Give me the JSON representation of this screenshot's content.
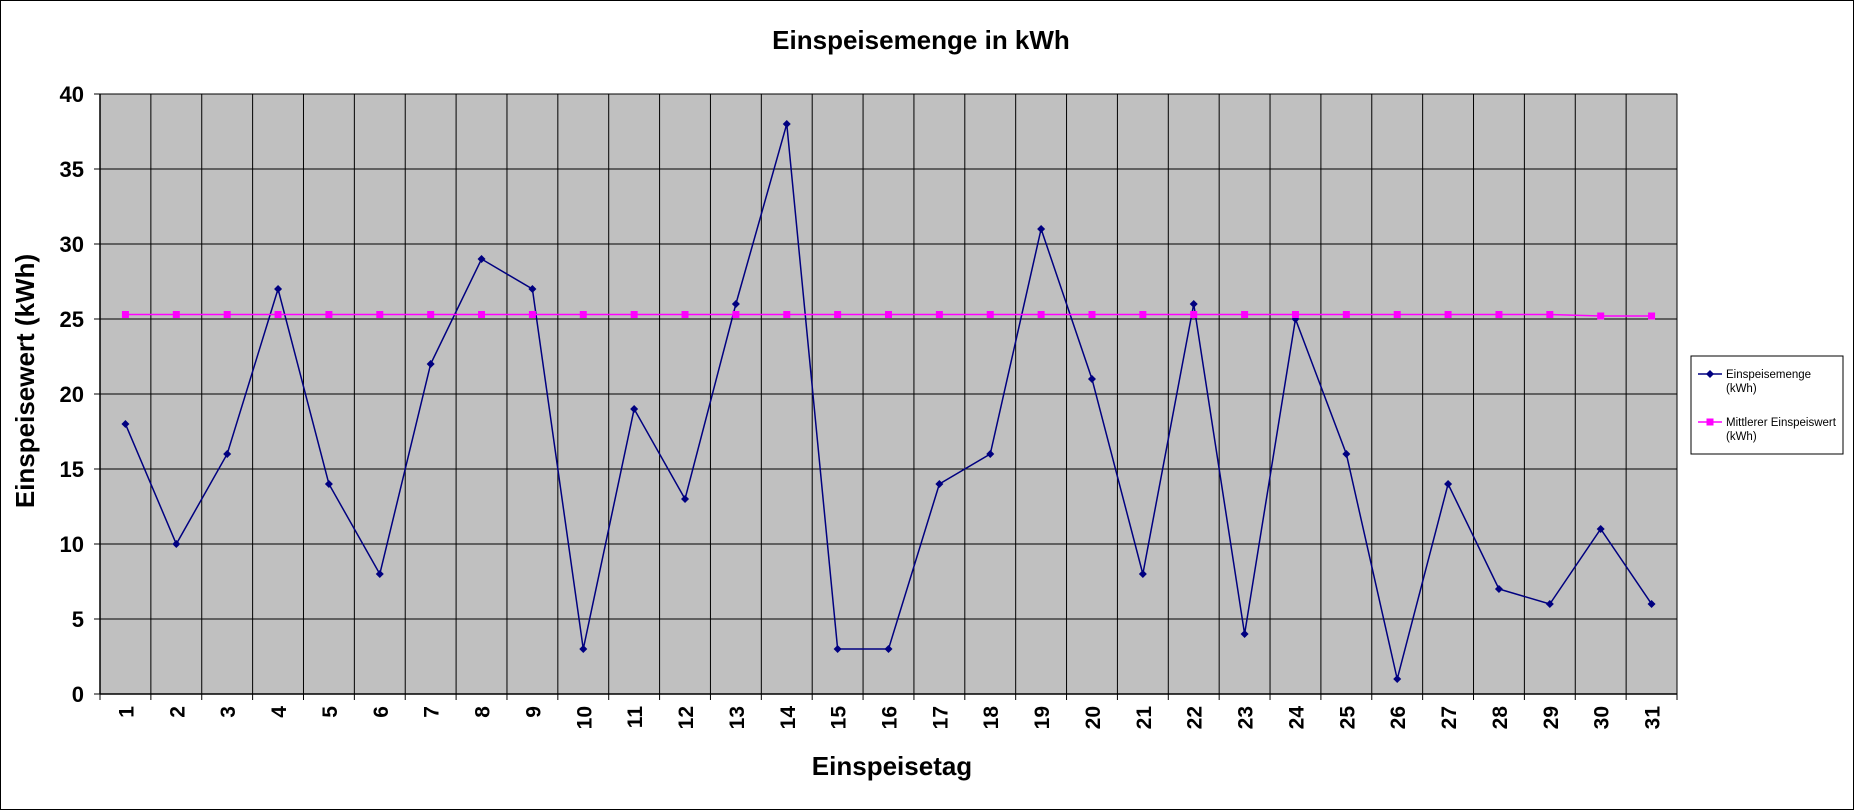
{
  "chart_data": {
    "type": "line",
    "title": "Einspeisemenge in kWh",
    "xlabel": "Einspeisetag",
    "ylabel": "Einspeisewert  (kWh)",
    "categories": [
      "1",
      "2",
      "3",
      "4",
      "5",
      "6",
      "7",
      "8",
      "9",
      "10",
      "11",
      "12",
      "13",
      "14",
      "15",
      "16",
      "17",
      "18",
      "19",
      "20",
      "21",
      "22",
      "23",
      "24",
      "25",
      "26",
      "27",
      "28",
      "29",
      "30",
      "31"
    ],
    "ylim": [
      0,
      40
    ],
    "yticks": [
      0,
      5,
      10,
      15,
      20,
      25,
      30,
      35,
      40
    ],
    "grid": true,
    "legend_position": "right",
    "series": [
      {
        "name": "Einspeisemenge (kWh)",
        "legend_lines": [
          "Einspeisemenge",
          "(kWh)"
        ],
        "color": "#000080",
        "marker": "diamond",
        "values": [
          18,
          10,
          16,
          27,
          14,
          8,
          22,
          29,
          27,
          3,
          19,
          13,
          26,
          38,
          3,
          3,
          14,
          16,
          31,
          21,
          8,
          26,
          4,
          25,
          16,
          1,
          14,
          7,
          6,
          11,
          6
        ]
      },
      {
        "name": "Mittlerer Einspeiswert (kWh)",
        "legend_lines": [
          "Mittlerer Einspeiswert",
          "(kWh)"
        ],
        "color": "#FF00FF",
        "marker": "square",
        "values": [
          25.3,
          25.3,
          25.3,
          25.3,
          25.3,
          25.3,
          25.3,
          25.3,
          25.3,
          25.3,
          25.3,
          25.3,
          25.3,
          25.3,
          25.3,
          25.3,
          25.3,
          25.3,
          25.3,
          25.3,
          25.3,
          25.3,
          25.3,
          25.3,
          25.3,
          25.3,
          25.3,
          25.3,
          25.3,
          25.2,
          25.2
        ]
      }
    ],
    "colors": {
      "plot_background": "#C0C0C0",
      "gridline": "#000000"
    }
  }
}
